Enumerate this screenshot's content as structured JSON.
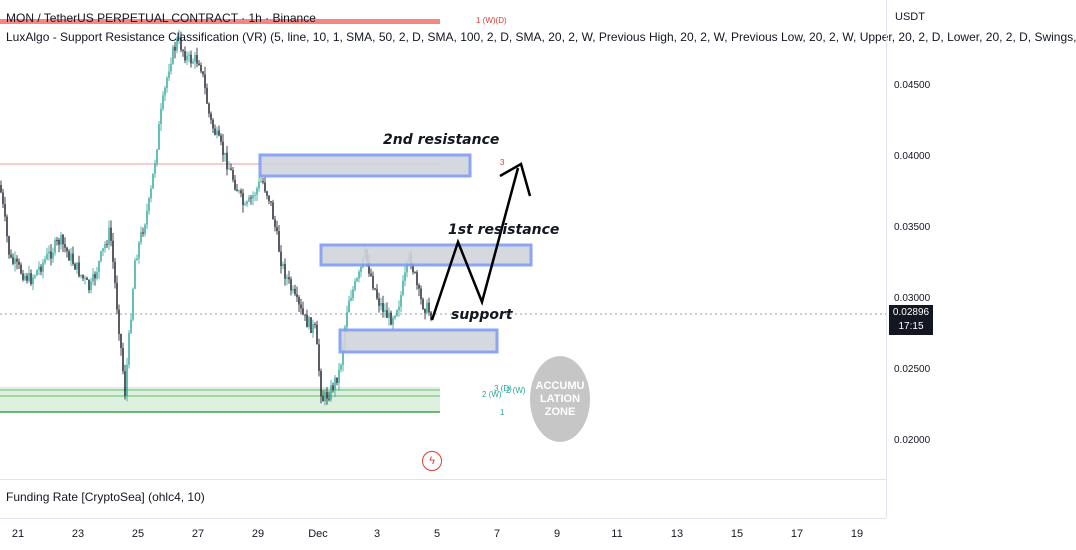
{
  "legend": {
    "symbol_line": "MON / TetherUS PERPETUAL CONTRACT · 1h · Binance",
    "indicator_line": "LuxAlgo - Support Resistance Classification (VR) (5, line, 10, 1, SMA, 50, 2, D, SMA, 100, 2, D, SMA, 20, 2, W, Previous High, 20, 2, W, Previous Low, 20, 2, W, Upper, 20, 2, D, Lower, 20, 2, D, Swings,"
  },
  "price_scale": {
    "currency": "USDT",
    "labels": [
      "0.04500",
      "0.04000",
      "0.03500",
      "0.03000",
      "0.02500",
      "0.02000"
    ],
    "last_price": "0.02896",
    "countdown": "17:15"
  },
  "time_axis": {
    "labels": [
      "21",
      "23",
      "25",
      "27",
      "29",
      "Dec",
      "3",
      "5",
      "7",
      "9",
      "11",
      "13",
      "15",
      "17",
      "19"
    ]
  },
  "annotations": {
    "resistance_2": "2nd resistance",
    "resistance_1": "1st resistance",
    "support": "support",
    "zone": "ACCUMU LATION ZONE"
  },
  "markers": {
    "top_red": "1 (W)(D)",
    "mid_red": "3",
    "green_a": "2 (W)",
    "green_b": "3 (D)",
    "green_c": "2 (W)",
    "green_d": "1"
  },
  "indicator_pane": {
    "title": "Funding Rate [CryptoSea] (ohlc4, 10)"
  },
  "colors": {
    "up": "#26a69a",
    "down": "#131722",
    "zone_fill": "#d1d4dc",
    "zone_border": "#7f9cf5",
    "resistance_red": "#ef5350",
    "support_green": "#4caf50"
  }
}
